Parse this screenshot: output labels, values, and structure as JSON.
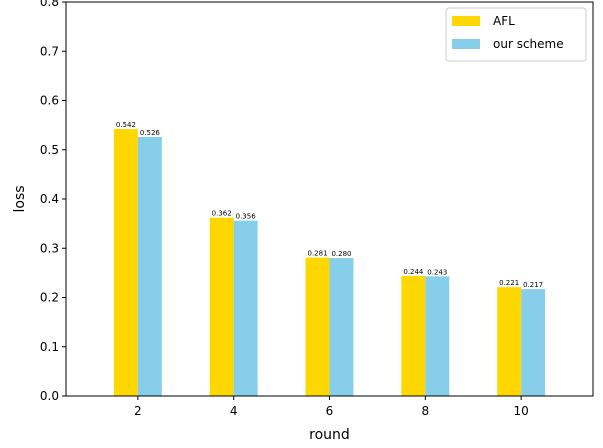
{
  "chart_data": {
    "type": "bar",
    "categories": [
      "2",
      "4",
      "6",
      "8",
      "10"
    ],
    "series": [
      {
        "name": "AFL",
        "color": "#ffd700",
        "values": [
          0.542,
          0.362,
          0.281,
          0.244,
          0.221
        ],
        "labels": [
          "0.542",
          "0.362",
          "0.281",
          "0.244",
          "0.221"
        ]
      },
      {
        "name": "our scheme",
        "color": "#87ceeb",
        "values": [
          0.526,
          0.356,
          0.28,
          0.243,
          0.217
        ],
        "labels": [
          "0.526",
          "0.356",
          "0.280",
          "0.243",
          "0.217"
        ]
      }
    ],
    "xlabel": "round",
    "ylabel": "loss",
    "ylim": [
      0,
      0.8
    ],
    "yticks": [
      0.0,
      0.1,
      0.2,
      0.3,
      0.4,
      0.5,
      0.6,
      0.7,
      0.8
    ],
    "ytick_labels": [
      "0.0",
      "0.1",
      "0.2",
      "0.3",
      "0.4",
      "0.5",
      "0.6",
      "0.7",
      "0.8"
    ],
    "grid": false,
    "legend_position": "top-right"
  }
}
